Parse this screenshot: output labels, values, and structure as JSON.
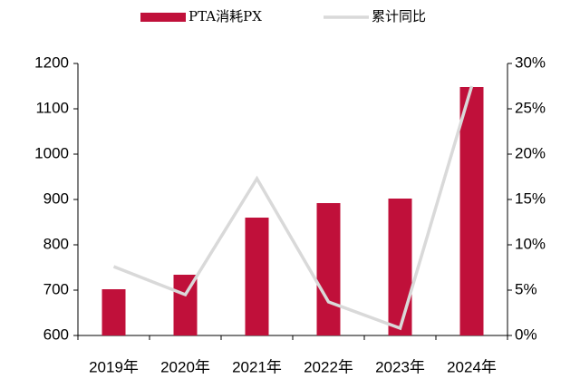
{
  "chart_data": {
    "type": "bar_line",
    "categories": [
      "2019年",
      "2020年",
      "2021年",
      "2022年",
      "2023年",
      "2024年"
    ],
    "series": [
      {
        "name": "PTA消耗PX",
        "color": "#c0103a",
        "type": "bar",
        "values": [
          702,
          734,
          860,
          892,
          902,
          1148
        ]
      },
      {
        "name": "累计同比",
        "color": "#d9d9d9",
        "type": "line",
        "axis": "y2",
        "values": [
          7.6,
          4.5,
          17.3,
          3.7,
          0.8,
          27.5
        ]
      }
    ],
    "ylim": [
      600,
      1200
    ],
    "yticks": [
      600,
      700,
      800,
      900,
      1000,
      1100,
      1200
    ],
    "y2lim": [
      0,
      30
    ],
    "y2ticks": [
      {
        "value": 0,
        "label": "0%"
      },
      {
        "value": 5,
        "label": "5%"
      },
      {
        "value": 10,
        "label": "10%"
      },
      {
        "value": 15,
        "label": "15%"
      },
      {
        "value": 20,
        "label": "20%"
      },
      {
        "value": 25,
        "label": "25%"
      },
      {
        "value": 30,
        "label": "30%"
      }
    ],
    "legend": "top"
  }
}
